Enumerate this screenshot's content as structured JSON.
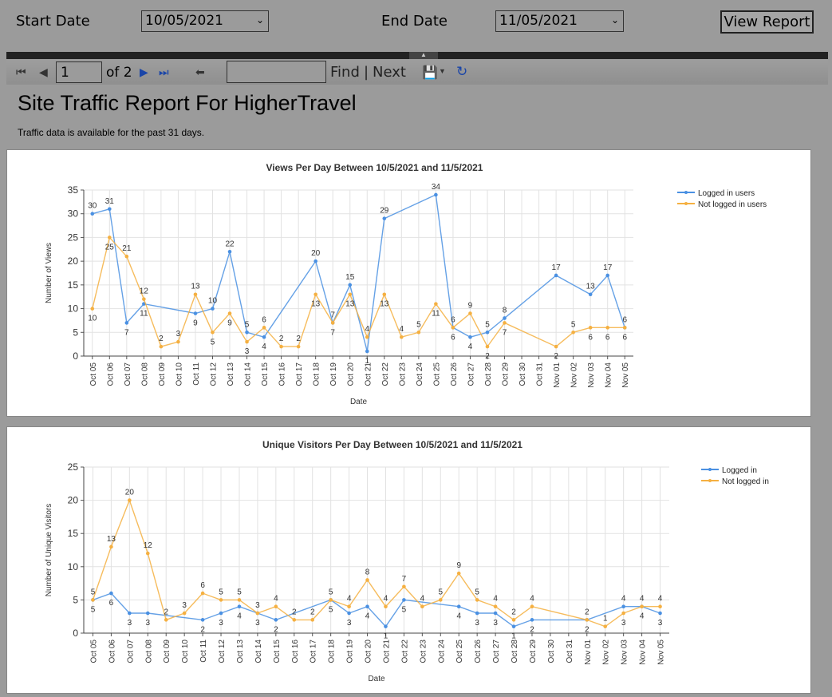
{
  "params": {
    "start_label": "Start Date",
    "start_value": "10/05/2021",
    "end_label": "End Date",
    "end_value": "11/05/2021",
    "view_button": "View Report"
  },
  "toolbar": {
    "page": "1",
    "of_text": "of 2",
    "find_label": "Find",
    "separator": "|",
    "next_label": "Next",
    "icons": [
      "first-page-icon",
      "prev-page-icon",
      "next-page-icon",
      "last-page-icon",
      "back-icon",
      "export-icon",
      "refresh-icon"
    ]
  },
  "report": {
    "title": "Site Traffic Report For HigherTravel",
    "subtitle": "Traffic data is available for the past 31 days."
  },
  "chart_data": [
    {
      "type": "line",
      "title": "Views Per Day Between 10/5/2021 and 11/5/2021",
      "xlabel": "Date",
      "ylabel": "Number of Views",
      "ylim": [
        0,
        35
      ],
      "yticks": [
        0,
        5,
        10,
        15,
        20,
        25,
        30,
        35
      ],
      "grid": true,
      "legend_position": "top-right",
      "categories": [
        "Oct 05",
        "Oct 06",
        "Oct 07",
        "Oct 08",
        "Oct 09",
        "Oct 10",
        "Oct 11",
        "Oct 12",
        "Oct 13",
        "Oct 14",
        "Oct 15",
        "Oct 16",
        "Oct 17",
        "Oct 18",
        "Oct 19",
        "Oct 20",
        "Oct 21",
        "Oct 22",
        "Oct 23",
        "Oct 24",
        "Oct 25",
        "Oct 26",
        "Oct 27",
        "Oct 28",
        "Oct 29",
        "Oct 30",
        "Oct 31",
        "Nov 01",
        "Nov 02",
        "Nov 03",
        "Nov 04",
        "Nov 05"
      ],
      "series": [
        {
          "name": "Logged in users",
          "color": "#4a90e2",
          "values": [
            30,
            31,
            7,
            11,
            null,
            null,
            9,
            10,
            22,
            5,
            4,
            null,
            null,
            20,
            7,
            15,
            1,
            29,
            null,
            null,
            34,
            6,
            4,
            5,
            8,
            null,
            null,
            17,
            null,
            13,
            17,
            6
          ]
        },
        {
          "name": "Not logged in users",
          "color": "#f5b041",
          "values": [
            10,
            25,
            21,
            12,
            2,
            3,
            13,
            5,
            9,
            3,
            6,
            2,
            2,
            13,
            7,
            13,
            4,
            13,
            4,
            5,
            11,
            6,
            9,
            2,
            7,
            null,
            null,
            2,
            5,
            6,
            6,
            6
          ]
        }
      ]
    },
    {
      "type": "line",
      "title": "Unique Visitors Per Day Between 10/5/2021 and 11/5/2021",
      "xlabel": "Date",
      "ylabel": "Number of Unique Visitors",
      "ylim": [
        0,
        25
      ],
      "yticks": [
        0,
        5,
        10,
        15,
        20,
        25
      ],
      "grid": true,
      "legend_position": "top-right",
      "categories": [
        "Oct 05",
        "Oct 06",
        "Oct 07",
        "Oct 08",
        "Oct 09",
        "Oct 10",
        "Oct 11",
        "Oct 12",
        "Oct 13",
        "Oct 14",
        "Oct 15",
        "Oct 16",
        "Oct 17",
        "Oct 18",
        "Oct 19",
        "Oct 20",
        "Oct 21",
        "Oct 22",
        "Oct 23",
        "Oct 24",
        "Oct 25",
        "Oct 26",
        "Oct 27",
        "Oct 28",
        "Oct 29",
        "Oct 30",
        "Oct 31",
        "Nov 01",
        "Nov 02",
        "Nov 03",
        "Nov 04",
        "Nov 05"
      ],
      "series": [
        {
          "name": "Logged in",
          "color": "#4a90e2",
          "values": [
            5,
            6,
            3,
            3,
            null,
            null,
            2,
            3,
            4,
            3,
            2,
            null,
            null,
            5,
            3,
            4,
            1,
            5,
            null,
            null,
            4,
            3,
            3,
            1,
            2,
            null,
            null,
            2,
            null,
            4,
            4,
            3
          ]
        },
        {
          "name": "Not logged in",
          "color": "#f5b041",
          "values": [
            5,
            13,
            20,
            12,
            2,
            3,
            6,
            5,
            5,
            3,
            4,
            2,
            2,
            5,
            4,
            8,
            4,
            7,
            4,
            5,
            9,
            5,
            4,
            2,
            4,
            null,
            null,
            2,
            1,
            3,
            4,
            4
          ]
        }
      ]
    }
  ]
}
